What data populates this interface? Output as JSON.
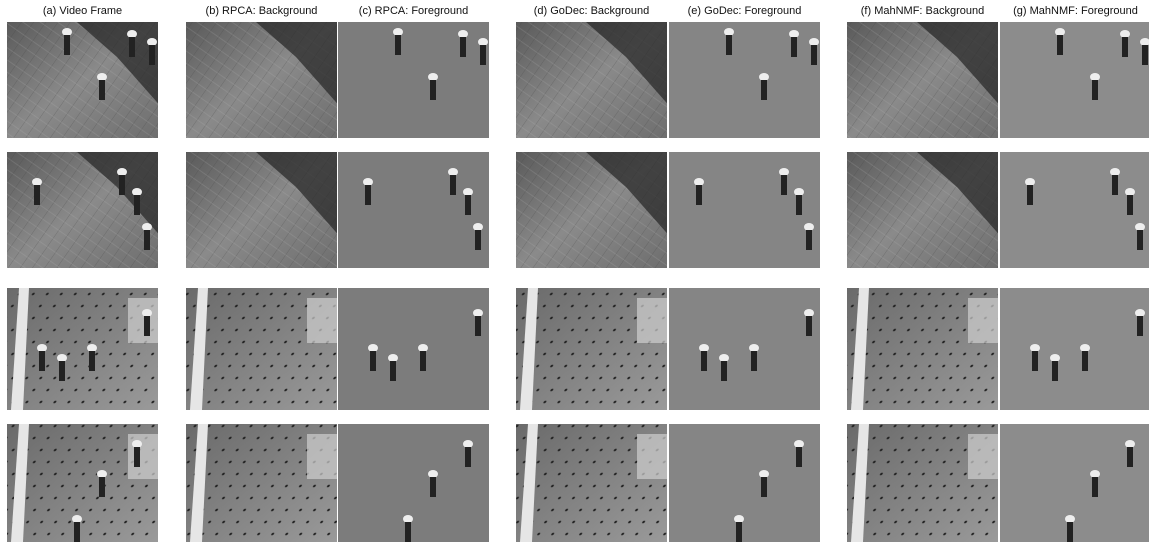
{
  "columns": [
    "(a) Video Frame",
    "(b) RPCA: Background",
    "(c) RPCA: Foreground",
    "(d) GoDec: Background",
    "(e) GoDec: Foreground",
    "(f) MahNMF: Background",
    "(g) MahNMF: Foreground"
  ]
}
